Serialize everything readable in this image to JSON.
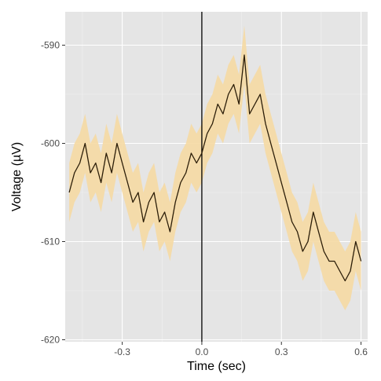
{
  "chart_data": {
    "type": "line",
    "title": "",
    "xlabel": "Time (sec)",
    "ylabel": "Voltage (µV)",
    "xlim": [
      -0.515,
      0.625
    ],
    "ylim": [
      -620.2,
      -586.6
    ],
    "x_ticks": [
      {
        "value": -0.3,
        "label": "-0.3"
      },
      {
        "value": 0.0,
        "label": "0.0"
      },
      {
        "value": 0.3,
        "label": "0.3"
      },
      {
        "value": 0.6,
        "label": "0.6"
      }
    ],
    "y_ticks": [
      {
        "value": -590,
        "label": "-590"
      },
      {
        "value": -600,
        "label": "-600"
      },
      {
        "value": -610,
        "label": "-610"
      },
      {
        "value": -620,
        "label": "-620"
      }
    ],
    "grid": true,
    "reference_line_x": 0.0,
    "series": [
      {
        "x": [
          -0.5,
          -0.48,
          -0.46,
          -0.44,
          -0.42,
          -0.4,
          -0.38,
          -0.36,
          -0.34,
          -0.32,
          -0.3,
          -0.28,
          -0.26,
          -0.24,
          -0.22,
          -0.2,
          -0.18,
          -0.16,
          -0.14,
          -0.12,
          -0.1,
          -0.08,
          -0.06,
          -0.04,
          -0.02,
          0.0,
          0.02,
          0.04,
          0.06,
          0.08,
          0.1,
          0.12,
          0.14,
          0.16,
          0.18,
          0.2,
          0.22,
          0.24,
          0.26,
          0.28,
          0.3,
          0.32,
          0.34,
          0.36,
          0.38,
          0.4,
          0.42,
          0.44,
          0.46,
          0.48,
          0.5,
          0.52,
          0.54,
          0.56,
          0.58,
          0.6
        ],
        "y": [
          -605,
          -603,
          -602,
          -600,
          -603,
          -602,
          -604,
          -601,
          -603,
          -600,
          -602,
          -604,
          -606,
          -605,
          -608,
          -606,
          -605,
          -608,
          -607,
          -609,
          -606,
          -604,
          -603,
          -601,
          -602,
          -601,
          -599,
          -598,
          -596,
          -597,
          -595,
          -594,
          -596,
          -591,
          -597,
          -596,
          -595,
          -598,
          -600,
          -602,
          -604,
          -606,
          -608,
          -609,
          -611,
          -610,
          -607,
          -609,
          -611,
          -612,
          -612,
          -613,
          -614,
          -613,
          -610,
          -612
        ],
        "upper": [
          -602,
          -600,
          -599,
          -597,
          -600,
          -599,
          -601,
          -598,
          -600,
          -597,
          -599,
          -601,
          -603,
          -602,
          -605,
          -603,
          -602,
          -605,
          -604,
          -606,
          -603,
          -601,
          -600,
          -598,
          -599,
          -598,
          -596,
          -595,
          -593,
          -594,
          -592,
          -591,
          -593,
          -588,
          -594,
          -593,
          -592,
          -595,
          -597,
          -599,
          -601,
          -603,
          -605,
          -606,
          -608,
          -607,
          -604,
          -606,
          -608,
          -609,
          -609,
          -610,
          -611,
          -610,
          -607,
          -609
        ],
        "lower": [
          -608,
          -606,
          -605,
          -603,
          -606,
          -605,
          -607,
          -604,
          -606,
          -603,
          -605,
          -607,
          -609,
          -608,
          -611,
          -609,
          -608,
          -611,
          -610,
          -612,
          -609,
          -607,
          -606,
          -604,
          -605,
          -604,
          -602,
          -601,
          -599,
          -600,
          -598,
          -597,
          -599,
          -594,
          -600,
          -599,
          -598,
          -601,
          -603,
          -605,
          -607,
          -609,
          -611,
          -612,
          -614,
          -613,
          -610,
          -612,
          -614,
          -615,
          -615,
          -616,
          -617,
          -616,
          -613,
          -615
        ],
        "line_color": "#2b1d08",
        "band_color": "#f5d9a3"
      }
    ]
  },
  "colors": {
    "panel": "#e5e5e5",
    "grid_major": "#ffffff",
    "grid_minor": "#f2f2f2",
    "reference_line": "#000000"
  }
}
